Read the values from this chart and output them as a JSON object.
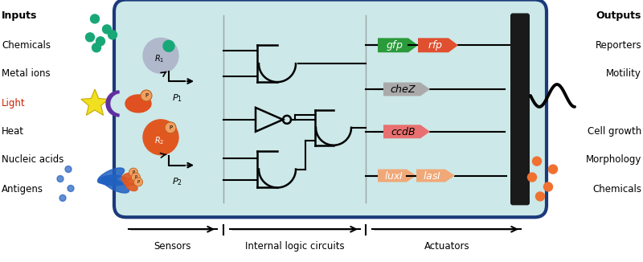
{
  "bg_color": "#cce8e8",
  "cell_border_color": "#1a3a7a",
  "inputs": [
    "Inputs",
    "Chemicals",
    "Metal ions",
    "Light",
    "Heat",
    "Nucleic acids",
    "Antigens"
  ],
  "outputs": [
    "Outputs",
    "Reporters",
    "Motility",
    "",
    "Cell growth",
    "Morphology",
    "Chemicals"
  ],
  "teal_dot_color": "#18a878",
  "orange_dot_color": "#f07030",
  "light_color": "#cc2200"
}
